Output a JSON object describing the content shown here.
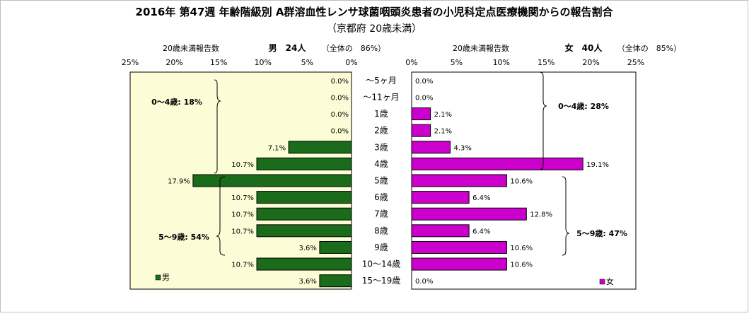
{
  "chart_data": {
    "type": "bar",
    "title": "2016年 第47週 年齢階級別 A群溶血性レンサ球菌咽頭炎患者の小児科定点医療機関からの報告割合",
    "subtitle": "（京都府 20歳未満）",
    "categories": [
      "～5ヶ月",
      "～11ヶ月",
      "1歳",
      "2歳",
      "3歳",
      "4歳",
      "5歳",
      "6歳",
      "7歳",
      "8歳",
      "9歳",
      "10～14歳",
      "15～19歳"
    ],
    "axis_ticks": [
      "25%",
      "20%",
      "15%",
      "10%",
      "5%",
      "0%"
    ],
    "axis_ticks_right": [
      "0%",
      "5%",
      "10%",
      "15%",
      "20%",
      "25%"
    ],
    "xlim": [
      0,
      25
    ],
    "series": [
      {
        "name": "男",
        "side": "left",
        "color": "#1a6b1a",
        "axis_label": "20歳未満報告数",
        "header_label": "男　24人",
        "header_note": "（全体の　86%）",
        "values": [
          0.0,
          0.0,
          0.0,
          0.0,
          7.1,
          10.7,
          17.9,
          10.7,
          10.7,
          10.7,
          3.6,
          10.7,
          3.6
        ],
        "labels": [
          "0.0%",
          "0.0%",
          "0.0%",
          "0.0%",
          "7.1%",
          "10.7%",
          "17.9%",
          "10.7%",
          "10.7%",
          "10.7%",
          "3.6%",
          "10.7%",
          "3.6%"
        ],
        "group_labels": [
          "0～4歳: 18%",
          "5～9歳: 54%"
        ]
      },
      {
        "name": "女",
        "side": "right",
        "color": "#cc00cc",
        "axis_label": "20歳未満報告数",
        "header_label": "女　40人",
        "header_note": "（全体の　85%）",
        "values": [
          0.0,
          0.0,
          2.1,
          2.1,
          4.3,
          19.1,
          10.6,
          6.4,
          12.8,
          6.4,
          10.6,
          10.6,
          0.0
        ],
        "labels": [
          "0.0%",
          "0.0%",
          "2.1%",
          "2.1%",
          "4.3%",
          "19.1%",
          "10.6%",
          "6.4%",
          "12.8%",
          "6.4%",
          "10.6%",
          "10.6%",
          "0.0%"
        ],
        "group_labels": [
          "0～4歳: 28%",
          "5～9歳: 47%"
        ]
      }
    ]
  }
}
